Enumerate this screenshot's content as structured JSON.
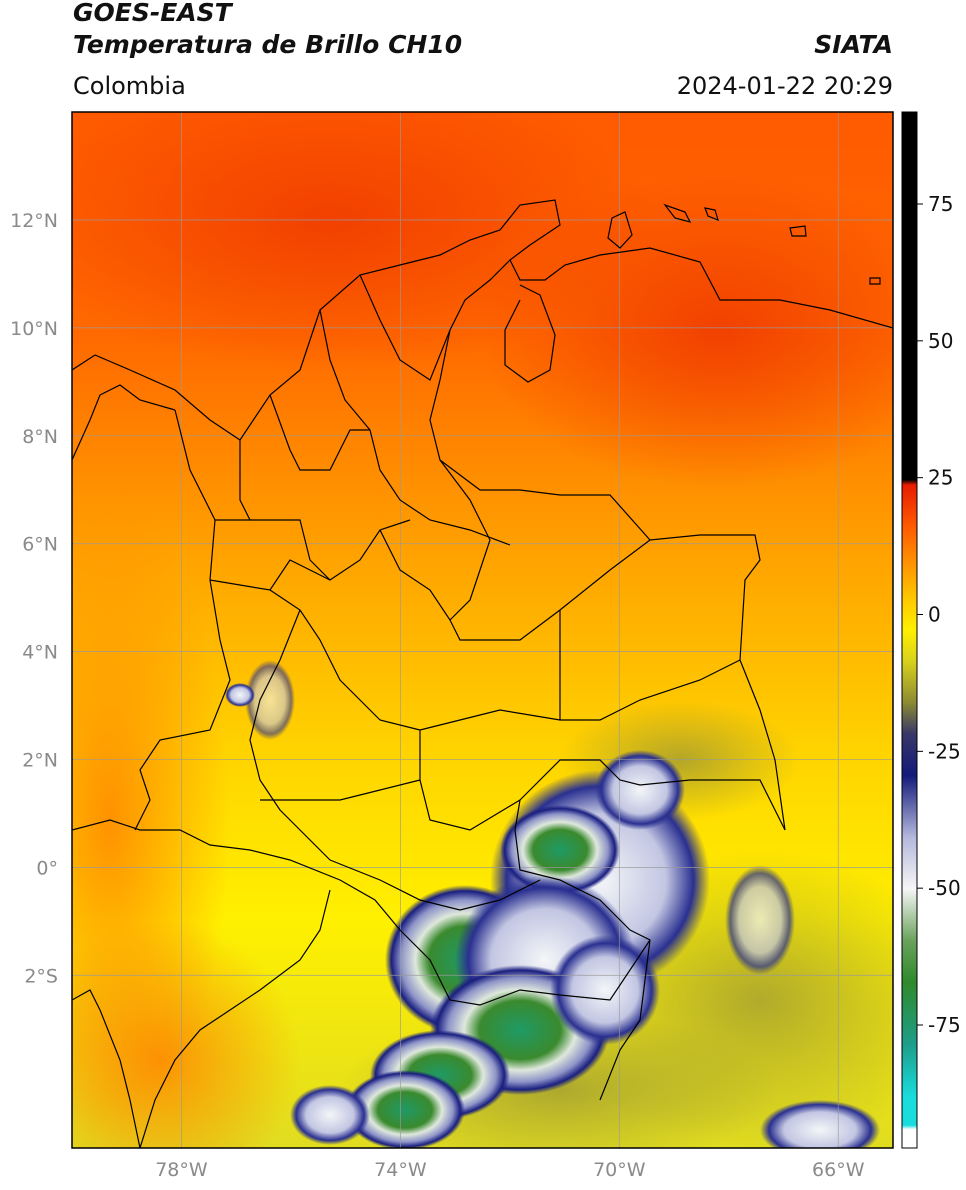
{
  "header": {
    "title_line1": "GOES-EAST",
    "title_line2": "Temperatura de Brillo CH10",
    "source": "SIATA",
    "region": "Colombia",
    "timestamp": "2024-01-22 20:29"
  },
  "map": {
    "lon_range": [
      -80,
      -65
    ],
    "lat_range": [
      -5.2,
      14
    ],
    "lon_labels": [
      "78°W",
      "74°W",
      "70°W",
      "66°W"
    ],
    "lat_labels": [
      "12°N",
      "10°N",
      "8°N",
      "6°N",
      "4°N",
      "2°N",
      "0°",
      "2°S"
    ],
    "colors": {
      "grid": "#9a9a9a",
      "border": "#000000"
    }
  },
  "colorbar": {
    "tick_labels": [
      "75",
      "50",
      "25",
      "0",
      "-25",
      "-50",
      "-75"
    ],
    "colors": {
      "warm_top": "#000000",
      "zero_red": "#e81c00",
      "orange": "#ff7a00",
      "yellow": "#fff000",
      "olive": "#8c8a33",
      "navy": "#131a7a",
      "white": "#ffffff",
      "green": "#2f8a2c",
      "cyan": "#19dcdc"
    }
  }
}
